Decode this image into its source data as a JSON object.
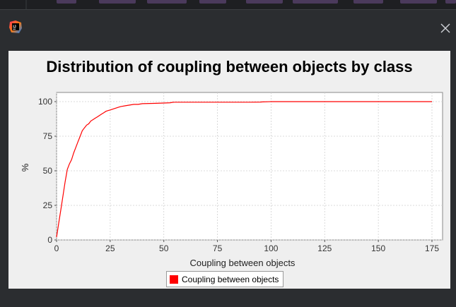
{
  "window": {
    "app_icon": "intellij-idea-icon",
    "close_icon": "close-icon"
  },
  "chart_data": {
    "type": "line",
    "title": "Distribution of coupling between objects by class",
    "xlabel": "Coupling between objects",
    "ylabel": "%",
    "xlim": [
      0,
      175
    ],
    "ylim": [
      0,
      100
    ],
    "xticks": [
      0,
      25,
      50,
      75,
      100,
      125,
      150,
      175
    ],
    "yticks": [
      0,
      25,
      50,
      75,
      100
    ],
    "grid": true,
    "legend_position": "bottom-center",
    "series": [
      {
        "name": "Coupling between objects",
        "color": "#ff0000",
        "x": [
          0,
          1,
          2,
          3,
          4,
          5,
          6,
          7,
          8,
          9,
          10,
          11,
          12,
          13,
          14,
          15,
          16,
          17,
          18,
          19,
          20,
          21,
          22,
          23,
          24,
          25,
          26,
          27,
          28,
          29,
          30,
          32,
          34,
          36,
          38,
          40,
          45,
          50,
          53,
          54,
          55,
          60,
          70,
          80,
          90,
          95,
          96,
          100,
          175
        ],
        "values": [
          2,
          12,
          22,
          32,
          42,
          51,
          55,
          58,
          63,
          67,
          71,
          75,
          79,
          81,
          83,
          84,
          86,
          87,
          88,
          89,
          90,
          91,
          92,
          93,
          93.5,
          94,
          94.5,
          95,
          95.5,
          96,
          96.5,
          97,
          97.5,
          98,
          98,
          98.5,
          98.7,
          99,
          99.2,
          99.5,
          99.6,
          99.6,
          99.6,
          99.6,
          99.6,
          99.7,
          99.8,
          100,
          100
        ]
      }
    ]
  }
}
